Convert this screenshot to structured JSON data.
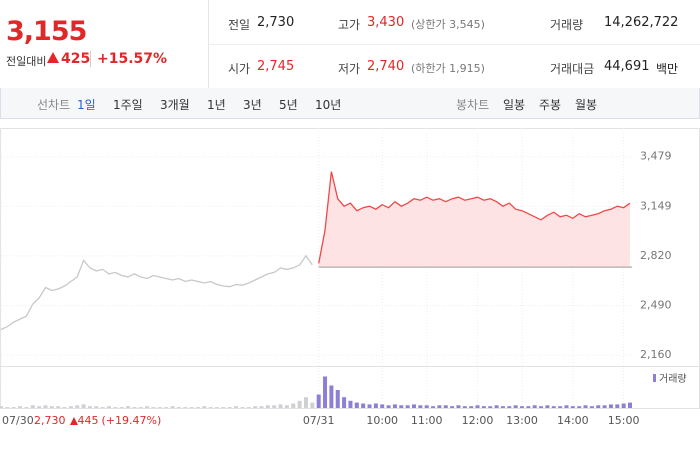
{
  "header": {
    "price": "3,155",
    "change_label": "전일대비",
    "change": "425",
    "change_pct": "+15.57%"
  },
  "stats": [
    {
      "label": "전일",
      "value": "2,730"
    },
    {
      "label": "고가",
      "value": "3,430",
      "note": "(상한가 3,545)"
    },
    {
      "label": "거래량",
      "value": "14,262,722"
    },
    {
      "label": "시가",
      "value": "2,745"
    },
    {
      "label": "저가",
      "value": "2,740",
      "note": "(하한가 1,915)"
    },
    {
      "label": "거래대금",
      "value": "44,691",
      "unit": "백만"
    }
  ],
  "tabs": {
    "line_label": "선차트",
    "line_tabs": [
      "1일",
      "1주일",
      "3개월",
      "1년",
      "3년",
      "5년",
      "10년"
    ],
    "candle_label": "봉차트",
    "candle_tabs": [
      "일봉",
      "주봉",
      "월봉"
    ]
  },
  "chart_data": {
    "type": "line",
    "ylim": [
      2095,
      3590
    ],
    "yticks": [
      {
        "value": 2160,
        "label": "2,160"
      },
      {
        "value": 2490,
        "label": "2,490"
      },
      {
        "value": 2820,
        "label": "2,820"
      },
      {
        "value": 3149,
        "label": "3,149"
      },
      {
        "value": 3479,
        "label": "3,479"
      }
    ],
    "base_value": 2745,
    "xticks": [
      {
        "value": 0,
        "label": "07/30"
      },
      {
        "value": 50,
        "label": "07/31"
      },
      {
        "value": 60,
        "label": "10:00"
      },
      {
        "value": 67,
        "label": "11:00"
      },
      {
        "value": 75,
        "label": "12:00"
      },
      {
        "value": 82,
        "label": "13:00"
      },
      {
        "value": 90,
        "label": "14:00"
      },
      {
        "value": 98,
        "label": "15:00"
      }
    ],
    "prev_close": "2,730",
    "prev_change": "445",
    "prev_change_pct": "(+19.47%)",
    "series": [
      {
        "color": "#c8c8c8",
        "values": [
          2330,
          2350,
          2380,
          2400,
          2420,
          2500,
          2540,
          2610,
          2590,
          2600,
          2620,
          2650,
          2680,
          2790,
          2740,
          2720,
          2730,
          2700,
          2710,
          2690,
          2680,
          2700,
          2680,
          2670,
          2690,
          2680,
          2670,
          2660,
          2670,
          2650,
          2660,
          2650,
          2640,
          2650,
          2630,
          2620,
          2615,
          2630,
          2625,
          2640,
          2660,
          2680,
          2700,
          2710,
          2740,
          2730,
          2740,
          2760,
          2820,
          2760,
          null,
          null,
          null,
          null,
          null,
          null,
          null,
          null,
          null,
          null,
          null,
          null,
          null,
          null,
          null,
          null,
          null,
          null,
          null,
          null,
          null,
          null,
          null,
          null,
          null,
          null,
          null,
          null,
          null,
          null,
          null,
          null,
          null,
          null,
          null,
          null,
          null,
          null,
          null,
          null,
          null,
          null,
          null,
          null,
          null,
          null,
          null,
          null,
          null,
          null
        ]
      },
      {
        "color": "#f04848",
        "fill": "#fde3e3",
        "values": [
          null,
          null,
          null,
          null,
          null,
          null,
          null,
          null,
          null,
          null,
          null,
          null,
          null,
          null,
          null,
          null,
          null,
          null,
          null,
          null,
          null,
          null,
          null,
          null,
          null,
          null,
          null,
          null,
          null,
          null,
          null,
          null,
          null,
          null,
          null,
          null,
          null,
          null,
          null,
          null,
          null,
          null,
          null,
          null,
          null,
          null,
          null,
          null,
          null,
          null,
          2770,
          2990,
          3380,
          3200,
          3150,
          3170,
          3120,
          3140,
          3150,
          3130,
          3160,
          3140,
          3180,
          3150,
          3170,
          3200,
          3190,
          3210,
          3190,
          3200,
          3180,
          3200,
          3210,
          3190,
          3200,
          3210,
          3190,
          3200,
          3180,
          3150,
          3170,
          3130,
          3120,
          3100,
          3080,
          3060,
          3090,
          3110,
          3080,
          3090,
          3070,
          3100,
          3080,
          3090,
          3100,
          3120,
          3130,
          3150,
          3140,
          3170
        ]
      }
    ],
    "volume": {
      "name": "거래량",
      "color": "#8c7fd6",
      "prev_color": "#cfcfd6",
      "vlim": [
        0,
        40
      ],
      "values": [
        2,
        1,
        1,
        2,
        1,
        3,
        2,
        3,
        2,
        2,
        1,
        2,
        3,
        4,
        2,
        2,
        1,
        2,
        1,
        1,
        2,
        1,
        1,
        2,
        1,
        1,
        1,
        2,
        1,
        1,
        1,
        1,
        2,
        1,
        1,
        1,
        1,
        2,
        1,
        1,
        2,
        2,
        3,
        3,
        4,
        3,
        5,
        8,
        12,
        6,
        15,
        35,
        25,
        20,
        12,
        8,
        6,
        5,
        4,
        5,
        4,
        3,
        4,
        3,
        3,
        4,
        3,
        3,
        2,
        3,
        3,
        2,
        3,
        2,
        2,
        3,
        2,
        2,
        3,
        2,
        2,
        3,
        2,
        2,
        3,
        2,
        3,
        2,
        2,
        3,
        2,
        2,
        3,
        2,
        3,
        3,
        4,
        4,
        5,
        6
      ]
    }
  }
}
